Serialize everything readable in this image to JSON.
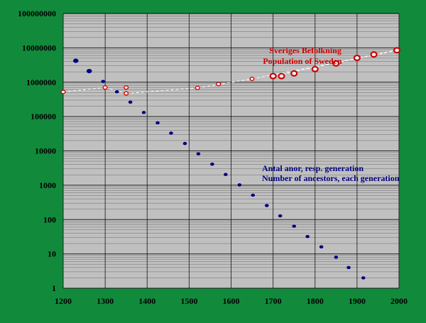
{
  "chart_data": {
    "type": "scatter",
    "title": "",
    "xlabel": "",
    "ylabel": "",
    "xlim": [
      1200,
      2000
    ],
    "ylim": [
      1,
      100000000
    ],
    "y_scale": "log",
    "grid": true,
    "colors": {
      "background": "#128a3c",
      "plot_area": "#c0c0c0",
      "ancestors": "#000080",
      "population": "#cc0000",
      "trend": "#ffffff"
    },
    "x_ticks": [
      "1200",
      "1300",
      "1400",
      "1500",
      "1600",
      "1700",
      "1800",
      "1900",
      "2000"
    ],
    "y_ticks": [
      "1",
      "10",
      "100",
      "1000",
      "10000",
      "100000",
      "1000000",
      "10000000",
      "100000000"
    ],
    "annotations": {
      "population_sv": "Sveriges Befolkning",
      "population_en": "Population of Sweden",
      "ancestors_sv": "Antal anor, resp. generation",
      "ancestors_en": "Number of ancestors, each generation"
    },
    "series": [
      {
        "key": "ancestors",
        "style": "dots",
        "x": [
          1230,
          1262,
          1295,
          1328,
          1360,
          1392,
          1425,
          1457,
          1490,
          1522,
          1555,
          1587,
          1620,
          1652,
          1685,
          1717,
          1750,
          1782,
          1815,
          1850,
          1880,
          1915
        ],
        "y": [
          4200000,
          2100000,
          1050000,
          525000,
          262000,
          131000,
          65500,
          32800,
          16400,
          8200,
          4100,
          2050,
          1020,
          512,
          256,
          128,
          64,
          32,
          16,
          8,
          4,
          2
        ]
      },
      {
        "key": "population",
        "style": "rings",
        "x": [
          1200,
          1300,
          1350,
          1350,
          1520,
          1570,
          1650,
          1700,
          1720,
          1750,
          1800,
          1850,
          1900,
          1940,
          1995
        ],
        "y": [
          520000,
          700000,
          700000,
          470000,
          680000,
          880000,
          1250000,
          1500000,
          1500000,
          1800000,
          2400000,
          3500000,
          5100000,
          6400000,
          8500000
        ]
      }
    ]
  }
}
